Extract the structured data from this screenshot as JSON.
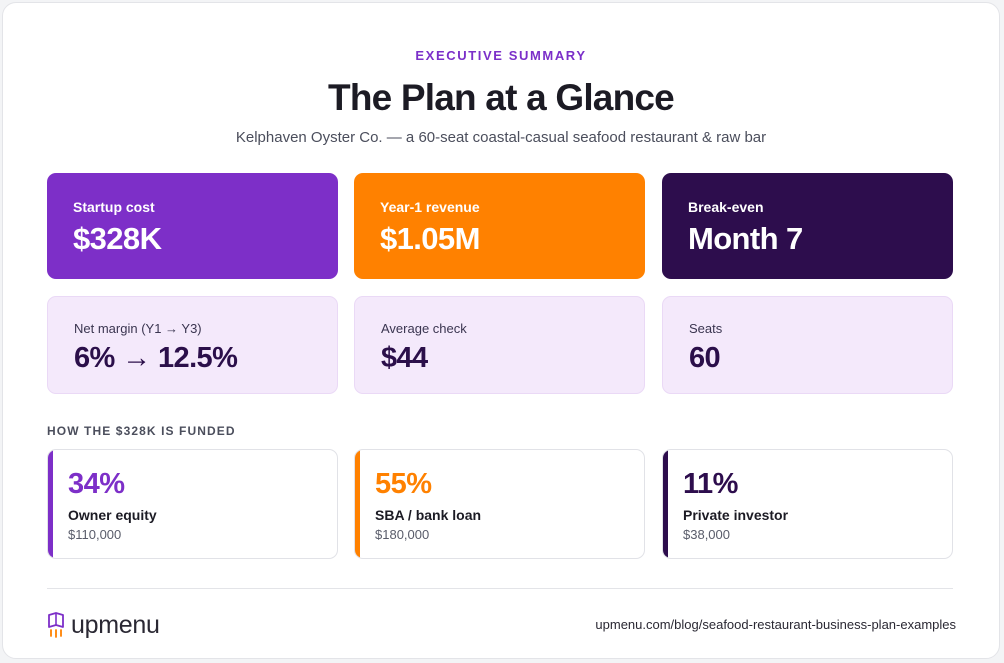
{
  "header": {
    "eyebrow": "EXECUTIVE SUMMARY",
    "title": "The Plan at a Glance",
    "subtitle": "Kelphaven Oyster Co. — a 60-seat coastal-casual seafood restaurant & raw bar"
  },
  "highlights": [
    {
      "label": "Startup cost",
      "value": "$328K",
      "color": "#7d2fc8"
    },
    {
      "label": "Year-1 revenue",
      "value": "$1.05M",
      "color": "#ff8100"
    },
    {
      "label": "Break-even",
      "value": "Month 7",
      "color": "#2d0d4d"
    }
  ],
  "metrics": [
    {
      "label": "Net margin (Y1 → Y3)",
      "value": "6% → 12.5%"
    },
    {
      "label": "Average check",
      "value": "$44"
    },
    {
      "label": "Seats",
      "value": "60"
    }
  ],
  "funding": {
    "section_label": "HOW THE $328K IS FUNDED",
    "items": [
      {
        "pct": "34%",
        "name": "Owner equity",
        "amount": "$110,000",
        "color": "#7d2fc8"
      },
      {
        "pct": "55%",
        "name": "SBA / bank loan",
        "amount": "$180,000",
        "color": "#ff8100"
      },
      {
        "pct": "11%",
        "name": "Private investor",
        "amount": "$38,000",
        "color": "#2d0d4d"
      }
    ]
  },
  "footer": {
    "brand": "upmenu",
    "logo_icon": "upmenu-logo-icon",
    "url": "upmenu.com/blog/seafood-restaurant-business-plan-examples"
  }
}
